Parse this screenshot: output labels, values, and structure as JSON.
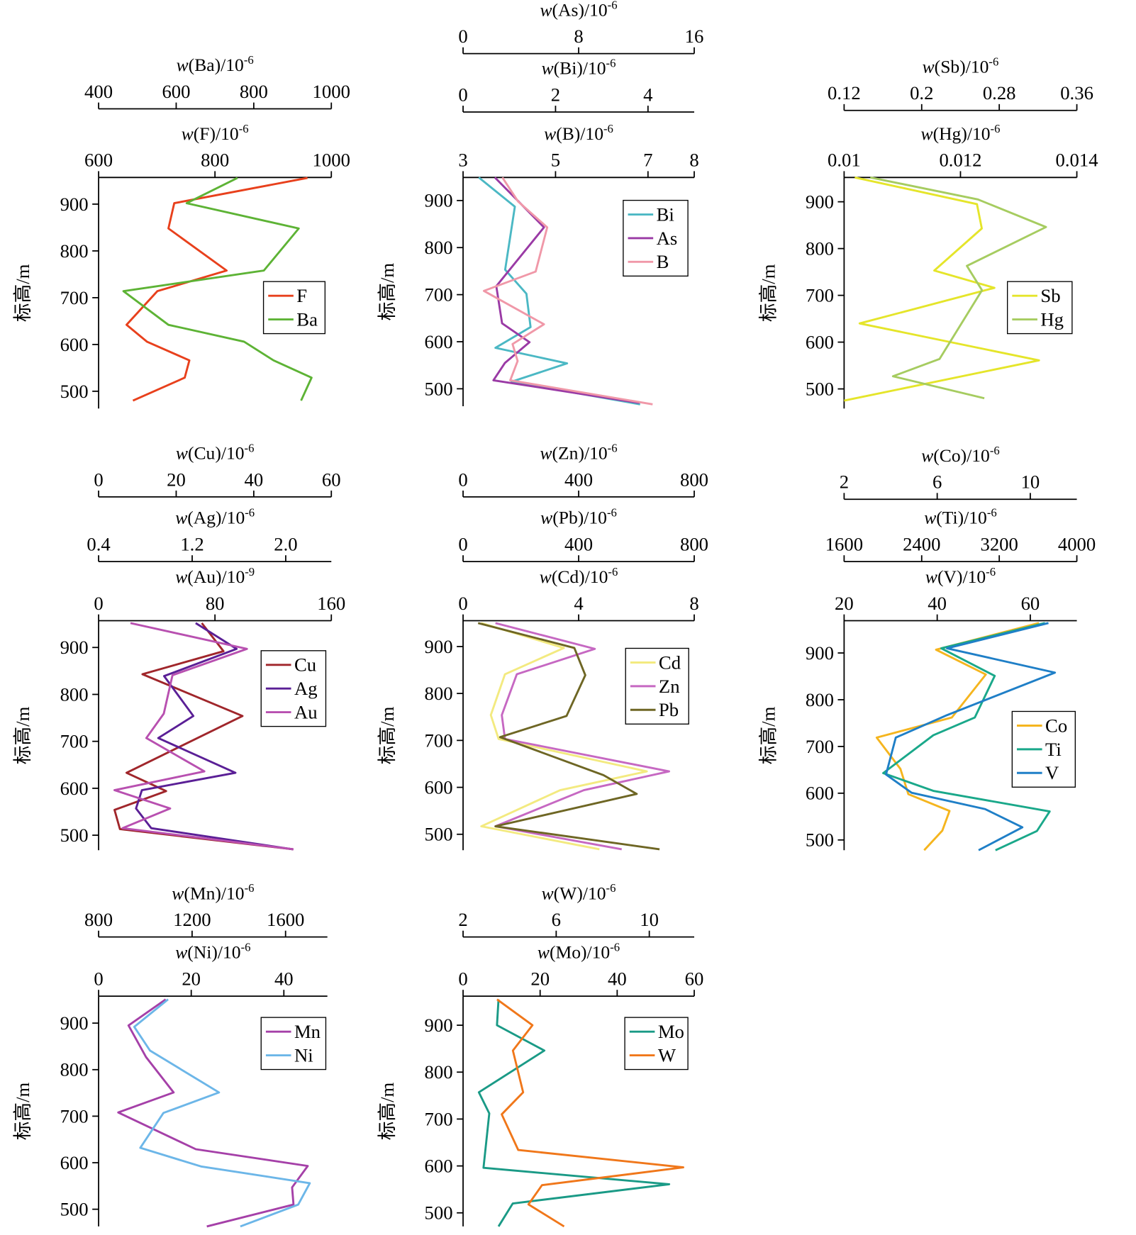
{
  "chart_data": [
    {
      "type": "line",
      "ylabel": "标高/m",
      "ylim": [
        463,
        957
      ],
      "yticks": [
        500,
        600,
        700,
        800,
        900
      ],
      "axes": [
        {
          "label_italic": "w",
          "label": "(Ba)/10",
          "label_sup": "-6",
          "xlim": [
            400,
            1000
          ],
          "xticks": [
            400,
            600,
            800,
            1000
          ]
        },
        {
          "label_italic": "w",
          "label": "(F)/10",
          "label_sup": "-6",
          "xlim": [
            600,
            1000
          ],
          "xticks": [
            600,
            800,
            1000
          ]
        }
      ],
      "series": [
        {
          "name": "F",
          "color": "#e8401c",
          "axis": 1,
          "values": [
            959,
            730,
            720,
            820,
            701,
            648,
            683,
            756,
            748,
            659
          ],
          "y": [
            956,
            902,
            848,
            758,
            714,
            642,
            606,
            566,
            529,
            480
          ]
        },
        {
          "name": "Ba",
          "color": "#5db335",
          "axis": 0,
          "values": [
            758,
            627,
            916,
            826,
            464,
            580,
            775,
            851,
            949,
            922
          ],
          "y": [
            956,
            902,
            848,
            758,
            714,
            642,
            606,
            566,
            529,
            480
          ]
        }
      ]
    },
    {
      "type": "line",
      "ylabel": "标高/m",
      "ylim": [
        463,
        949
      ],
      "yticks": [
        500,
        600,
        700,
        800,
        900
      ],
      "axes": [
        {
          "label_italic": "w",
          "label": "(As)/10",
          "label_sup": "-6",
          "xlim": [
            0,
            16
          ],
          "xticks": [
            0,
            8,
            16
          ]
        },
        {
          "label_italic": "w",
          "label": "(Bi)/10",
          "label_sup": "-6",
          "xlim": [
            0,
            5
          ],
          "xticks": [
            0,
            2,
            4
          ]
        },
        {
          "label_italic": "w",
          "label": "(B)/10",
          "label_sup": "-6",
          "xlim": [
            3,
            8
          ],
          "xticks": [
            3,
            5,
            7,
            8
          ]
        }
      ],
      "series": [
        {
          "name": "Bi",
          "color": "#4bb8c4",
          "axis": 1,
          "values": [
            0.34,
            1.12,
            0.91,
            1.37,
            1.46,
            0.7,
            2.25,
            1.05,
            3.83
          ],
          "y": [
            949,
            887,
            753,
            702,
            631,
            587,
            554,
            515,
            467
          ]
        },
        {
          "name": "As",
          "color": "#9a3aa5",
          "axis": 0,
          "values": [
            2.2,
            5.6,
            2.3,
            2.7,
            4.6,
            2.9,
            2.1,
            12.2
          ],
          "y": [
            949,
            843,
            718,
            639,
            599,
            555,
            518,
            470
          ]
        },
        {
          "name": "B",
          "color": "#f098a8",
          "axis": 2,
          "values": [
            3.85,
            4.19,
            4.82,
            4.57,
            3.45,
            4.75,
            4.07,
            4.18,
            4.02,
            7.1
          ],
          "y": [
            949,
            898,
            843,
            749,
            708,
            637,
            595,
            559,
            518,
            467
          ]
        }
      ]
    },
    {
      "type": "line",
      "ylabel": "标高/m",
      "ylim": [
        458,
        952
      ],
      "yticks": [
        500,
        600,
        700,
        800,
        900
      ],
      "axes": [
        {
          "label_italic": "w",
          "label": "(Sb)/10",
          "label_sup": "-6",
          "xlim": [
            0.12,
            0.36
          ],
          "xticks": [
            0.12,
            0.2,
            0.28,
            0.36
          ]
        },
        {
          "label_italic": "w",
          "label": "(Hg)/10",
          "label_sup": "-6",
          "xlim": [
            0.01,
            0.014
          ],
          "xticks": [
            0.01,
            0.012,
            0.014
          ]
        }
      ],
      "series": [
        {
          "name": "Sb",
          "color": "#e5e52a",
          "axis": 0,
          "values": [
            0.131,
            0.257,
            0.262,
            0.213,
            0.275,
            0.136,
            0.321,
            0.12
          ],
          "y": [
            952,
            895,
            843,
            753,
            716,
            640,
            561,
            475
          ]
        },
        {
          "name": "Hg",
          "color": "#a6cc60",
          "axis": 1,
          "values": [
            0.01045,
            0.0123,
            0.01347,
            0.01211,
            0.01237,
            0.01164,
            0.01084,
            0.01241
          ],
          "y": [
            952,
            905,
            846,
            763,
            711,
            564,
            527,
            480
          ]
        }
      ]
    },
    {
      "type": "line",
      "ylabel": "标高/m",
      "ylim": [
        468,
        957
      ],
      "yticks": [
        500,
        600,
        700,
        800,
        900
      ],
      "axes": [
        {
          "label_italic": "w",
          "label": "(Cu)/10",
          "label_sup": "-6",
          "xlim": [
            0,
            60
          ],
          "xticks": [
            0,
            20,
            40,
            60
          ]
        },
        {
          "label_italic": "w",
          "label": "(Ag)/10",
          "label_sup": "-6",
          "xlim": [
            0.4,
            2.39
          ],
          "xticks": [
            0.4,
            1.2,
            {
              "value": 2,
              "label": "2.0"
            }
          ]
        },
        {
          "label_italic": "w",
          "label": "(Au)/10",
          "label_sup": "-9",
          "xlim": [
            0,
            160
          ],
          "xticks": [
            0,
            80,
            160
          ]
        }
      ],
      "series": [
        {
          "name": "Cu",
          "color": "#a0262b",
          "axis": 0,
          "values": [
            26.6,
            32.2,
            11.3,
            37.1,
            7.2,
            17.4,
            4.1,
            5.5,
            50.2
          ],
          "y": [
            952,
            892,
            843,
            754,
            633,
            594,
            554,
            513,
            470
          ]
        },
        {
          "name": "Ag",
          "color": "#5a1f96",
          "axis": 1,
          "values": [
            1.23,
            1.58,
            0.96,
            1.21,
            0.91,
            1.57,
            0.77,
            0.72,
            0.85,
            2.06
          ],
          "y": [
            952,
            897,
            839,
            754,
            707,
            633,
            596,
            557,
            515,
            470
          ]
        },
        {
          "name": "Au",
          "color": "#b850b0",
          "axis": 2,
          "values": [
            21.9,
            102,
            50.8,
            44.8,
            32.8,
            72.7,
            10.9,
            49.2,
            16.4,
            134
          ],
          "y": [
            952,
            897,
            841,
            759,
            707,
            636,
            596,
            557,
            515,
            470
          ]
        }
      ]
    },
    {
      "type": "line",
      "ylabel": "标高/m",
      "ylim": [
        466,
        955
      ],
      "yticks": [
        500,
        600,
        700,
        800,
        900
      ],
      "axes": [
        {
          "label_italic": "w",
          "label": "(Zn)/10",
          "label_sup": "-6",
          "xlim": [
            0,
            800
          ],
          "xticks": [
            0,
            400,
            800
          ]
        },
        {
          "label_italic": "w",
          "label": "(Pb)/10",
          "label_sup": "-6",
          "xlim": [
            0,
            800
          ],
          "xticks": [
            0,
            400,
            800
          ]
        },
        {
          "label_italic": "w",
          "label": "(Cd)/10",
          "label_sup": "-6",
          "xlim": [
            0,
            8
          ],
          "xticks": [
            0,
            4,
            8
          ]
        }
      ],
      "series": [
        {
          "name": "Cd",
          "color": "#f3ea80",
          "axis": 2,
          "values": [
            0.63,
            3.49,
            1.45,
            0.96,
            1.23,
            6.36,
            3.36,
            0.63,
            4.72
          ],
          "y": [
            950,
            897,
            841,
            754,
            703,
            634,
            594,
            517,
            468
          ]
        },
        {
          "name": "Zn",
          "color": "#c668c2",
          "axis": 0,
          "values": [
            112,
            456,
            186,
            134,
            145,
            713,
            418,
            112,
            549
          ],
          "y": [
            950,
            895,
            841,
            754,
            703,
            634,
            594,
            517,
            468
          ]
        },
        {
          "name": "Pb",
          "color": "#6e6624",
          "axis": 1,
          "values": [
            52,
            385,
            423,
            358,
            128,
            486,
            601,
            112,
            680
          ],
          "y": [
            950,
            897,
            839,
            752,
            707,
            626,
            586,
            517,
            468
          ]
        }
      ]
    },
    {
      "type": "line",
      "ylabel": "标高/m",
      "ylim": [
        478,
        969
      ],
      "yticks": [
        500,
        600,
        700,
        800,
        900
      ],
      "axes": [
        {
          "label_italic": "w",
          "label": "(Co)/10",
          "label_sup": "-6",
          "xlim": [
            2,
            12
          ],
          "xticks": [
            2,
            6,
            10
          ]
        },
        {
          "label_italic": "w",
          "label": "(Ti)/10",
          "label_sup": "-6",
          "xlim": [
            1600,
            4000
          ],
          "xticks": [
            1600,
            2400,
            3200,
            4000
          ]
        },
        {
          "label_italic": "w",
          "label": "(V)/10",
          "label_sup": "-6",
          "xlim": [
            20,
            70
          ],
          "xticks": [
            20,
            40,
            60
          ]
        }
      ],
      "series": [
        {
          "name": "Co",
          "color": "#f5b51e",
          "axis": 0,
          "values": [
            10.37,
            5.95,
            8.09,
            6.63,
            3.4,
            4.42,
            4.76,
            6.53,
            6.22,
            5.44
          ],
          "y": [
            964,
            907,
            854,
            762,
            719,
            652,
            598,
            562,
            520,
            478
          ]
        },
        {
          "name": "Ti",
          "color": "#1aa88a",
          "axis": 1,
          "values": [
            3671,
            2602,
            3153,
            2948,
            2520,
            2003,
            2520,
            3720,
            3588,
            3161
          ],
          "y": [
            964,
            910,
            851,
            762,
            724,
            643,
            605,
            561,
            519,
            478
          ]
        },
        {
          "name": "V",
          "color": "#1f7fc7",
          "axis": 2,
          "values": [
            63.9,
            42.1,
            65.3,
            42.1,
            31.1,
            29,
            34.5,
            50.3,
            58.3,
            48.9
          ],
          "y": [
            964,
            910,
            858,
            767,
            719,
            640,
            601,
            566,
            527,
            478
          ]
        }
      ]
    },
    {
      "type": "line",
      "ylabel": "标高/m",
      "ylim": [
        463,
        958
      ],
      "yticks": [
        500,
        600,
        700,
        800,
        900
      ],
      "axes": [
        {
          "label_italic": "w",
          "label": "(Mn)/10",
          "label_sup": "-6",
          "xlim": [
            800,
            1779
          ],
          "xticks": [
            800,
            1200,
            1600
          ]
        },
        {
          "label_italic": "w",
          "label": "(Ni)/10",
          "label_sup": "-6",
          "xlim": [
            0,
            49.4
          ],
          "xticks": [
            0,
            20,
            40
          ]
        }
      ],
      "series": [
        {
          "name": "Mn",
          "color": "#a540a8",
          "axis": 0,
          "values": [
            1087,
            928,
            1003,
            1121,
            884,
            1216,
            1695,
            1628,
            1634,
            1263
          ],
          "y": [
            951,
            895,
            827,
            751,
            708,
            629,
            593,
            547,
            510,
            463
          ]
        },
        {
          "name": "Ni",
          "color": "#6cb6e8",
          "axis": 1,
          "values": [
            15,
            7.7,
            11.1,
            26,
            14,
            9,
            22.1,
            45.6,
            43.1,
            30.6
          ],
          "y": [
            951,
            892,
            841,
            751,
            707,
            632,
            592,
            556,
            510,
            463
          ]
        }
      ]
    },
    {
      "type": "line",
      "ylabel": "标高/m",
      "ylim": [
        471,
        962
      ],
      "yticks": [
        500,
        600,
        700,
        800,
        900
      ],
      "axes": [
        {
          "label_italic": "w",
          "label": "(W)/10",
          "label_sup": "-6",
          "xlim": [
            2,
            11.93
          ],
          "xticks": [
            2,
            6,
            10
          ]
        },
        {
          "label_italic": "w",
          "label": "(Mo)/10",
          "label_sup": "-6",
          "xlim": [
            0,
            60
          ],
          "xticks": [
            0,
            20,
            40,
            60
          ]
        }
      ],
      "series": [
        {
          "name": "Mo",
          "color": "#1a9a86",
          "axis": 1,
          "values": [
            9.2,
            8.8,
            21.1,
            4.1,
            6.8,
            5.3,
            53.5,
            12.9,
            9.2
          ],
          "y": [
            955,
            900,
            846,
            757,
            712,
            596,
            561,
            520,
            471
          ]
        },
        {
          "name": "W",
          "color": "#f0771a",
          "axis": 0,
          "values": [
            3.46,
            4.98,
            4.14,
            4.58,
            3.66,
            4.37,
            11.46,
            5.39,
            4.81,
            6.34
          ],
          "y": [
            955,
            900,
            846,
            757,
            710,
            634,
            597,
            559,
            518,
            471
          ]
        }
      ]
    }
  ]
}
